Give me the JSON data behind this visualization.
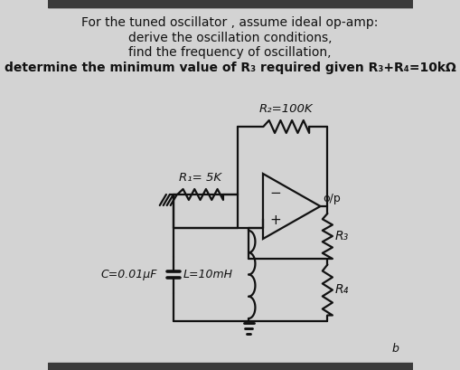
{
  "bg_color": "#d3d3d3",
  "dark_bar_color": "#3a3a3a",
  "title_lines": [
    "For the tuned oscillator , assume ideal op-amp:",
    "derive the oscillation conditions,",
    "find the frequency of oscillation,",
    "determine the minimum value of R₃ required given R₃+R₄=10kΩ"
  ],
  "labels": {
    "R2": "R₂=100K",
    "R1": "R₁= 5K",
    "R3": "R₃",
    "R4": "R₄",
    "L": "L=10mH",
    "C": "C=0.01μF",
    "op": "o/p"
  },
  "text_color": "#111111"
}
